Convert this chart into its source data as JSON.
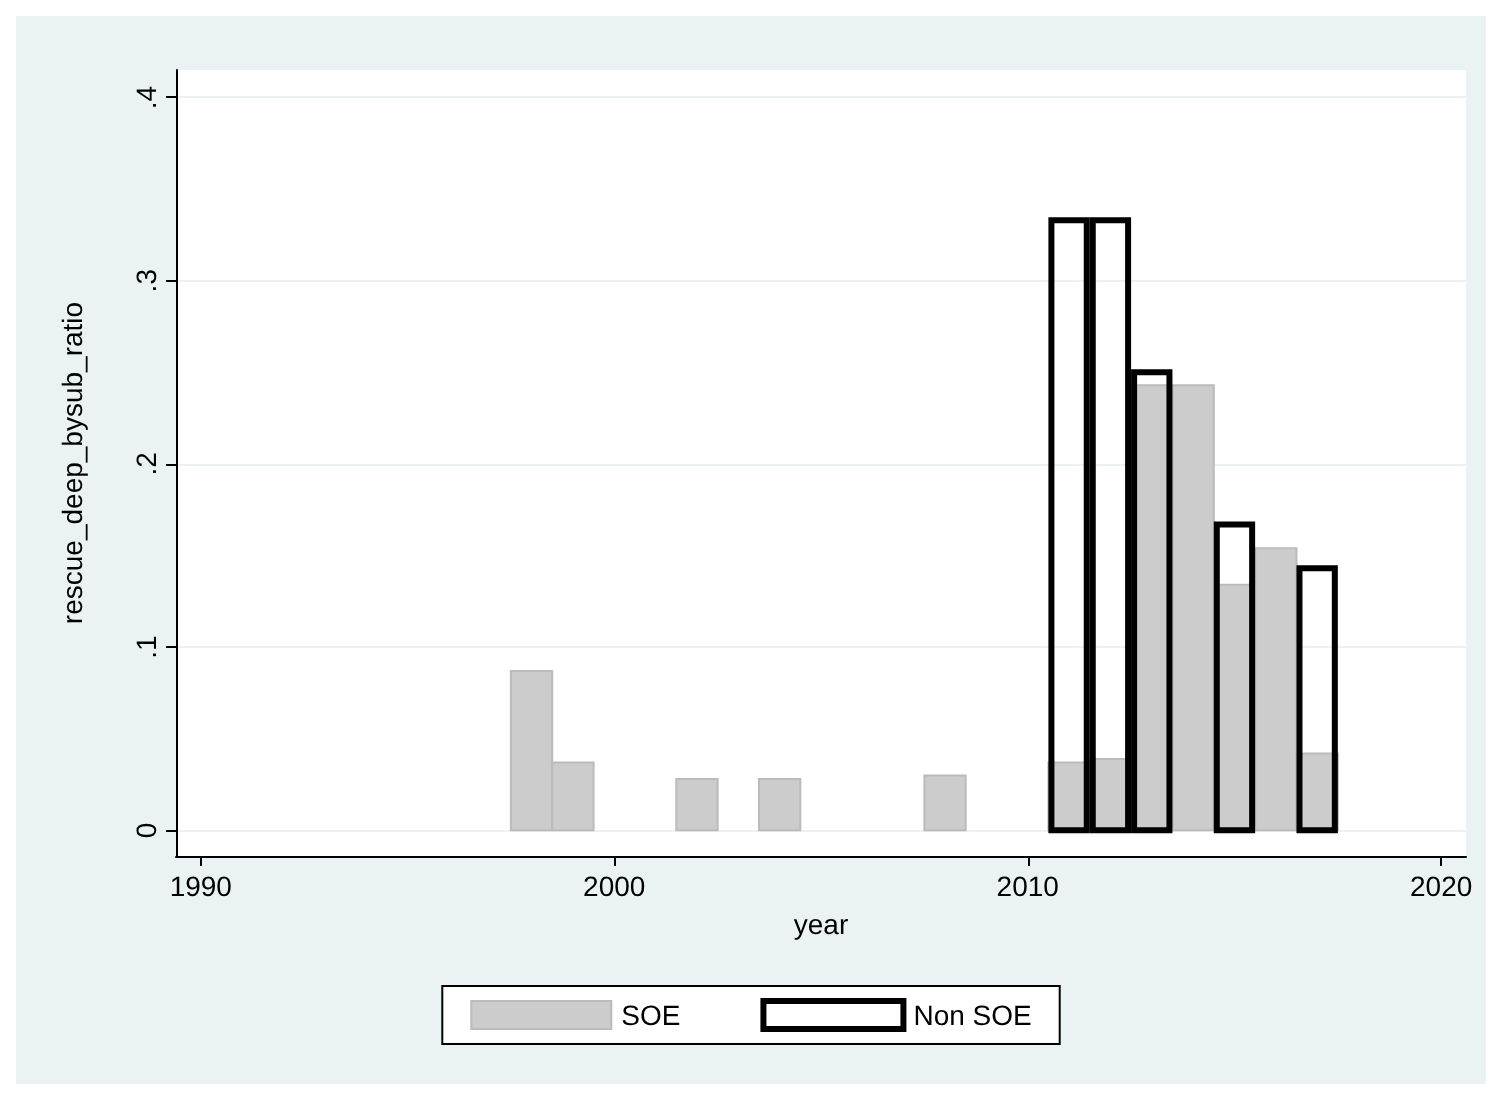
{
  "chart_data": {
    "type": "bar",
    "xlabel": "year",
    "ylabel": "rescue_deep_bysub_ratio",
    "series": [
      {
        "name": "SOE",
        "color": "#cccccc",
        "x": [
          1998,
          1999,
          2002,
          2004,
          2008,
          2011,
          2012,
          2013,
          2014,
          2015,
          2016,
          2017
        ],
        "values": [
          0.087,
          0.037,
          0.028,
          0.028,
          0.03,
          0.037,
          0.039,
          0.243,
          0.243,
          0.134,
          0.154,
          0.042
        ]
      },
      {
        "name": "Non SOE",
        "color": "#000000",
        "x": [
          2011,
          2012,
          2013,
          2015,
          2017
        ],
        "values": [
          0.333,
          0.333,
          0.25,
          0.167,
          0.143
        ]
      }
    ],
    "xlim": [
      1989.4,
      2020.6
    ],
    "xticks": [
      1990,
      2000,
      2010,
      2020
    ],
    "ylim": [
      -0.014,
      0.415
    ],
    "yticks": [
      0,
      {
        "value": 0.1,
        "label": ".1"
      },
      {
        "value": 0.2,
        "label": ".2"
      },
      {
        "value": 0.3,
        "label": ".3"
      },
      {
        "value": 0.4,
        "label": ".4"
      }
    ],
    "grid": "y",
    "legend": "bottom"
  }
}
